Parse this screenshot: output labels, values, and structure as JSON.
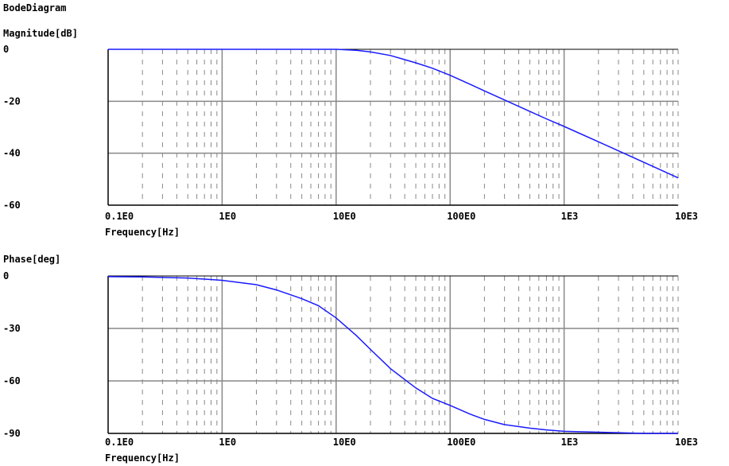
{
  "title": "BodeDiagram",
  "x_tick_labels": [
    "0.1E0",
    "1E0",
    "10E0",
    "100E0",
    "1E3",
    "10E3"
  ],
  "colors": {
    "curve": "#1a1aff",
    "grid_major": "#888888",
    "grid_minor": "#888888",
    "axes": "#000000",
    "background": "#ffffff"
  },
  "chart_data": [
    {
      "type": "line",
      "ylabel": "Magnitude[dB]",
      "xlabel": "Frequency[Hz]",
      "xscale": "log",
      "xlim": [
        0.1,
        10000
      ],
      "ylim": [
        -60,
        0
      ],
      "yticks": [
        0,
        -20,
        -40,
        -60
      ],
      "ytick_labels": [
        "0",
        "-20",
        "-40",
        "-60"
      ],
      "grid": true,
      "series": [
        {
          "x": [
            0.1,
            0.2,
            0.5,
            1,
            2,
            5,
            10,
            15,
            20,
            30,
            50,
            70,
            100,
            150,
            200,
            300,
            500,
            700,
            1000,
            2000,
            3000,
            5000,
            7000,
            10000
          ],
          "y": [
            0,
            0,
            0,
            0,
            0,
            0,
            0,
            -0.4,
            -1.0,
            -2.4,
            -5.2,
            -7.3,
            -10.0,
            -13.5,
            -16.0,
            -19.5,
            -23.9,
            -26.8,
            -29.7,
            -35.6,
            -39.1,
            -43.5,
            -46.4,
            -49.5
          ]
        }
      ]
    },
    {
      "type": "line",
      "ylabel": "Phase[deg]",
      "xlabel": "Frequency[Hz]",
      "xscale": "log",
      "xlim": [
        0.1,
        10000
      ],
      "ylim": [
        -90,
        0
      ],
      "yticks": [
        0,
        -30,
        -60,
        -90
      ],
      "ytick_labels": [
        "0",
        "-30",
        "-60",
        "-90"
      ],
      "grid": true,
      "series": [
        {
          "x": [
            0.1,
            0.2,
            0.5,
            1,
            2,
            3,
            5,
            7,
            10,
            15,
            20,
            30,
            50,
            70,
            100,
            150,
            200,
            300,
            500,
            700,
            1000,
            2000,
            3000,
            5000,
            10000
          ],
          "y": [
            -0.4,
            -0.6,
            -1.2,
            -2.5,
            -5.0,
            -8.0,
            -13.0,
            -17.0,
            -24.0,
            -34.0,
            -42.0,
            -53.0,
            -64.0,
            -70.0,
            -74.0,
            -79.0,
            -82.0,
            -85.0,
            -87.0,
            -88.0,
            -88.8,
            -89.3,
            -89.6,
            -90.0,
            -90.0
          ]
        }
      ]
    }
  ]
}
